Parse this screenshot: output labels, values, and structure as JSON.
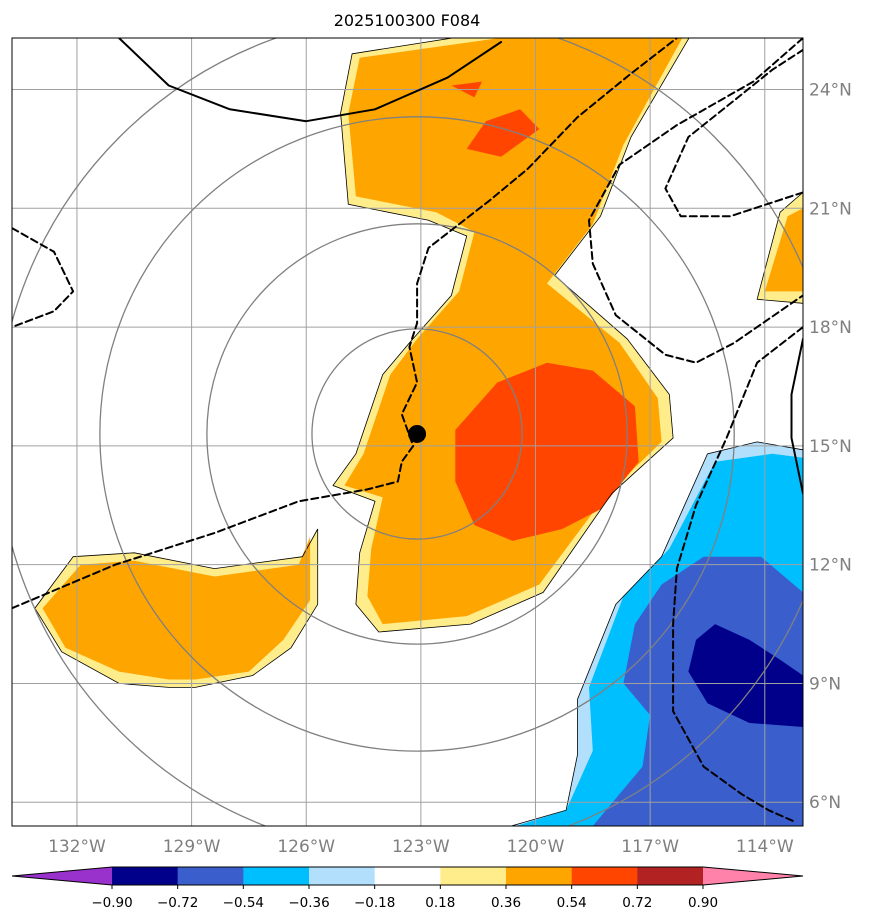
{
  "chart_data": {
    "type": "heatmap",
    "title": "2025100300 F084",
    "xlabel": "",
    "ylabel": "",
    "xlim": [
      -133.7,
      -113.0
    ],
    "ylim": [
      5.4,
      25.3
    ],
    "x_ticks": [
      -132,
      -129,
      -126,
      -123,
      -120,
      -117,
      -114
    ],
    "x_tick_labels": [
      "132°W",
      "129°W",
      "126°W",
      "123°W",
      "120°W",
      "117°W",
      "114°W"
    ],
    "y_ticks": [
      6,
      9,
      12,
      15,
      18,
      21,
      24
    ],
    "y_tick_labels": [
      "6°N",
      "9°N",
      "12°N",
      "15°N",
      "18°N",
      "21°N",
      "24°N"
    ],
    "grid": true,
    "storm_center": {
      "lon": -123.1,
      "lat": 15.3
    },
    "range_rings_deg": [
      2.75,
      5.5,
      8.3,
      11.0
    ],
    "colorbar": {
      "levels": [
        -0.9,
        -0.72,
        -0.54,
        -0.36,
        -0.18,
        0.18,
        0.36,
        0.54,
        0.72,
        0.9
      ],
      "labels": [
        "−0.90",
        "−0.72",
        "−0.54",
        "−0.36",
        "−0.18",
        "0.18",
        "0.36",
        "0.54",
        "0.72",
        "0.90"
      ],
      "colors": [
        "#9932cc",
        "#00008b",
        "#3a5fcd",
        "#00bfff",
        "#b2dffb",
        "#ffffff",
        "#ffec8b",
        "#ffa500",
        "#ff4500",
        "#b22222",
        "#ff82ab"
      ],
      "extend": "both"
    },
    "filled_regions": [
      {
        "level": 0.18,
        "color": "#ffec8b",
        "points": [
          [
            -124.8,
            24.9
          ],
          [
            -120.2,
            25.6
          ],
          [
            -115.8,
            25.6
          ],
          [
            -117.5,
            22.8
          ],
          [
            -118.3,
            20.8
          ],
          [
            -119.5,
            19.3
          ],
          [
            -117.6,
            17.7
          ],
          [
            -116.5,
            16.3
          ],
          [
            -116.4,
            15.2
          ],
          [
            -118.0,
            13.8
          ],
          [
            -119.8,
            11.3
          ],
          [
            -121.7,
            10.5
          ],
          [
            -124.1,
            10.3
          ],
          [
            -124.7,
            11.0
          ],
          [
            -124.6,
            12.3
          ],
          [
            -124.2,
            13.6
          ],
          [
            -125.3,
            14.0
          ],
          [
            -124.7,
            14.8
          ],
          [
            -124.0,
            16.8
          ],
          [
            -123.3,
            17.6
          ],
          [
            -122.2,
            18.8
          ],
          [
            -121.8,
            20.3
          ],
          [
            -122.8,
            20.7
          ],
          [
            -124.9,
            21.1
          ],
          [
            -125.1,
            23.4
          ]
        ]
      },
      {
        "level": 0.18,
        "color": "#ffec8b",
        "points": [
          [
            -132.1,
            12.2
          ],
          [
            -130.5,
            12.3
          ],
          [
            -128.4,
            11.9
          ],
          [
            -126.1,
            12.2
          ],
          [
            -125.7,
            12.9
          ],
          [
            -125.7,
            11.0
          ],
          [
            -126.4,
            9.9
          ],
          [
            -127.4,
            9.2
          ],
          [
            -128.9,
            8.9
          ],
          [
            -129.6,
            8.9
          ],
          [
            -130.9,
            9.0
          ],
          [
            -132.4,
            9.8
          ],
          [
            -133.1,
            10.9
          ]
        ]
      },
      {
        "level": 0.18,
        "color": "#ffec8b",
        "points": [
          [
            -113.0,
            21.4
          ],
          [
            -113.6,
            20.9
          ],
          [
            -114.2,
            18.7
          ],
          [
            -113.0,
            18.6
          ]
        ]
      },
      {
        "level": 0.36,
        "color": "#ffa500",
        "points": [
          [
            -124.6,
            24.8
          ],
          [
            -120.2,
            25.4
          ],
          [
            -116.1,
            25.4
          ],
          [
            -117.7,
            22.6
          ],
          [
            -118.5,
            20.6
          ],
          [
            -119.7,
            19.1
          ],
          [
            -117.8,
            17.6
          ],
          [
            -116.8,
            16.2
          ],
          [
            -116.7,
            15.1
          ],
          [
            -118.2,
            13.7
          ],
          [
            -119.9,
            11.5
          ],
          [
            -121.8,
            10.7
          ],
          [
            -124.0,
            10.5
          ],
          [
            -124.4,
            11.2
          ],
          [
            -124.3,
            12.4
          ],
          [
            -124.0,
            13.7
          ],
          [
            -125.0,
            14.0
          ],
          [
            -124.5,
            14.8
          ],
          [
            -123.8,
            16.8
          ],
          [
            -123.1,
            17.7
          ],
          [
            -122.0,
            18.9
          ],
          [
            -121.6,
            20.4
          ],
          [
            -122.6,
            20.9
          ],
          [
            -124.7,
            21.3
          ],
          [
            -124.9,
            23.4
          ]
        ]
      },
      {
        "level": 0.36,
        "color": "#ffa500",
        "points": [
          [
            -131.9,
            12.0
          ],
          [
            -130.5,
            12.1
          ],
          [
            -128.4,
            11.7
          ],
          [
            -126.2,
            12.0
          ],
          [
            -125.9,
            12.7
          ],
          [
            -125.9,
            11.1
          ],
          [
            -126.6,
            10.1
          ],
          [
            -127.5,
            9.3
          ],
          [
            -128.9,
            9.1
          ],
          [
            -129.6,
            9.1
          ],
          [
            -130.9,
            9.3
          ],
          [
            -132.3,
            9.9
          ],
          [
            -132.9,
            10.9
          ]
        ]
      },
      {
        "level": 0.36,
        "color": "#ffa500",
        "points": [
          [
            -113.0,
            21.0
          ],
          [
            -113.4,
            20.8
          ],
          [
            -114.0,
            18.9
          ],
          [
            -113.0,
            18.9
          ]
        ]
      },
      {
        "level": 0.54,
        "color": "#ff4500",
        "points": [
          [
            -122.1,
            15.4
          ],
          [
            -121.0,
            16.6
          ],
          [
            -119.7,
            17.1
          ],
          [
            -118.5,
            16.9
          ],
          [
            -117.4,
            16.0
          ],
          [
            -117.3,
            14.6
          ],
          [
            -118.3,
            13.4
          ],
          [
            -119.3,
            12.9
          ],
          [
            -120.6,
            12.6
          ],
          [
            -121.6,
            13.0
          ],
          [
            -122.1,
            14.1
          ]
        ]
      },
      {
        "level": 0.54,
        "color": "#ff4500",
        "points": [
          [
            -121.3,
            23.2
          ],
          [
            -120.4,
            23.5
          ],
          [
            -119.9,
            23.0
          ],
          [
            -120.9,
            22.3
          ],
          [
            -121.8,
            22.5
          ]
        ]
      },
      {
        "level": 0.54,
        "color": "#ff4500",
        "points": [
          [
            -122.2,
            24.1
          ],
          [
            -121.4,
            24.2
          ],
          [
            -121.6,
            23.8
          ]
        ]
      },
      {
        "level": -0.18,
        "color": "#b2dffb",
        "points": [
          [
            -121.0,
            5.3
          ],
          [
            -119.2,
            5.8
          ],
          [
            -118.9,
            7.2
          ],
          [
            -118.9,
            8.6
          ],
          [
            -117.9,
            11.0
          ],
          [
            -116.7,
            12.2
          ],
          [
            -115.5,
            14.8
          ],
          [
            -114.2,
            15.1
          ],
          [
            -113.0,
            14.9
          ],
          [
            -113.0,
            5.3
          ]
        ]
      },
      {
        "level": -0.36,
        "color": "#00bfff",
        "points": [
          [
            -120.5,
            5.4
          ],
          [
            -119.2,
            5.8
          ],
          [
            -118.5,
            7.3
          ],
          [
            -118.6,
            8.9
          ],
          [
            -117.7,
            11.2
          ],
          [
            -116.5,
            12.4
          ],
          [
            -115.3,
            14.6
          ],
          [
            -113.8,
            14.8
          ],
          [
            -113.0,
            14.7
          ],
          [
            -113.0,
            5.4
          ]
        ]
      },
      {
        "level": -0.54,
        "color": "#3a5fcd",
        "points": [
          [
            -118.5,
            5.4
          ],
          [
            -117.2,
            6.9
          ],
          [
            -117.0,
            8.2
          ],
          [
            -117.7,
            9.0
          ],
          [
            -117.4,
            10.5
          ],
          [
            -116.7,
            11.5
          ],
          [
            -115.6,
            12.2
          ],
          [
            -114.1,
            12.2
          ],
          [
            -113.0,
            11.3
          ],
          [
            -113.0,
            5.4
          ]
        ]
      },
      {
        "level": -0.72,
        "color": "#00008b",
        "points": [
          [
            -115.3,
            10.5
          ],
          [
            -114.4,
            10.1
          ],
          [
            -113.6,
            9.6
          ],
          [
            -113.0,
            9.2
          ],
          [
            -113.0,
            7.9
          ],
          [
            -114.4,
            8.0
          ],
          [
            -115.5,
            8.5
          ],
          [
            -116.0,
            9.3
          ],
          [
            -115.8,
            10.1
          ]
        ]
      }
    ],
    "contours": [
      {
        "style": "solid",
        "points": [
          [
            -130.9,
            25.3
          ],
          [
            -129.6,
            24.1
          ],
          [
            -128.0,
            23.5
          ],
          [
            -126.0,
            23.2
          ],
          [
            -124.2,
            23.5
          ],
          [
            -122.3,
            24.3
          ],
          [
            -120.9,
            25.2
          ]
        ]
      },
      {
        "style": "solid",
        "points": [
          [
            -113.0,
            17.7
          ],
          [
            -113.3,
            16.3
          ],
          [
            -113.3,
            15.2
          ],
          [
            -113.0,
            13.8
          ]
        ]
      },
      {
        "style": "dashed",
        "points": [
          [
            -133.7,
            20.5
          ],
          [
            -132.6,
            19.9
          ],
          [
            -132.1,
            18.9
          ],
          [
            -132.6,
            18.4
          ],
          [
            -133.7,
            18.0
          ]
        ]
      },
      {
        "style": "dashed",
        "points": [
          [
            -133.7,
            10.9
          ],
          [
            -131.0,
            12.0
          ],
          [
            -128.4,
            12.8
          ],
          [
            -126.2,
            13.6
          ],
          [
            -124.4,
            13.9
          ],
          [
            -123.6,
            14.1
          ],
          [
            -123.5,
            14.6
          ],
          [
            -123.2,
            15.0
          ],
          [
            -123.5,
            15.8
          ],
          [
            -123.1,
            16.6
          ],
          [
            -123.3,
            17.5
          ],
          [
            -123.1,
            18.1
          ],
          [
            -123.1,
            19.1
          ],
          [
            -122.8,
            20.0
          ],
          [
            -121.2,
            21.2
          ],
          [
            -120.2,
            22.0
          ],
          [
            -118.9,
            23.3
          ],
          [
            -117.5,
            24.4
          ],
          [
            -116.3,
            25.3
          ]
        ]
      },
      {
        "style": "dashed",
        "points": [
          [
            -113.0,
            25.3
          ],
          [
            -114.3,
            24.2
          ],
          [
            -116.3,
            23.1
          ],
          [
            -117.8,
            22.1
          ],
          [
            -118.6,
            20.7
          ],
          [
            -118.5,
            19.6
          ],
          [
            -117.9,
            18.3
          ],
          [
            -116.6,
            17.3
          ],
          [
            -115.8,
            17.1
          ],
          [
            -114.8,
            17.6
          ],
          [
            -113.9,
            18.2
          ],
          [
            -113.0,
            18.8
          ]
        ]
      },
      {
        "style": "dashed",
        "points": [
          [
            -113.0,
            21.4
          ],
          [
            -114.9,
            20.8
          ],
          [
            -116.2,
            20.8
          ],
          [
            -116.6,
            21.5
          ],
          [
            -116.0,
            22.8
          ],
          [
            -114.7,
            23.8
          ],
          [
            -113.8,
            24.5
          ],
          [
            -113.0,
            25.0
          ]
        ]
      },
      {
        "style": "dashed",
        "points": [
          [
            -113.0,
            18.0
          ],
          [
            -114.2,
            17.1
          ],
          [
            -115.0,
            15.2
          ],
          [
            -115.8,
            13.5
          ],
          [
            -116.3,
            11.9
          ],
          [
            -116.4,
            10.5
          ],
          [
            -116.4,
            8.3
          ],
          [
            -115.6,
            6.9
          ],
          [
            -114.6,
            6.2
          ],
          [
            -113.9,
            5.8
          ],
          [
            -113.2,
            5.5
          ]
        ]
      }
    ]
  }
}
